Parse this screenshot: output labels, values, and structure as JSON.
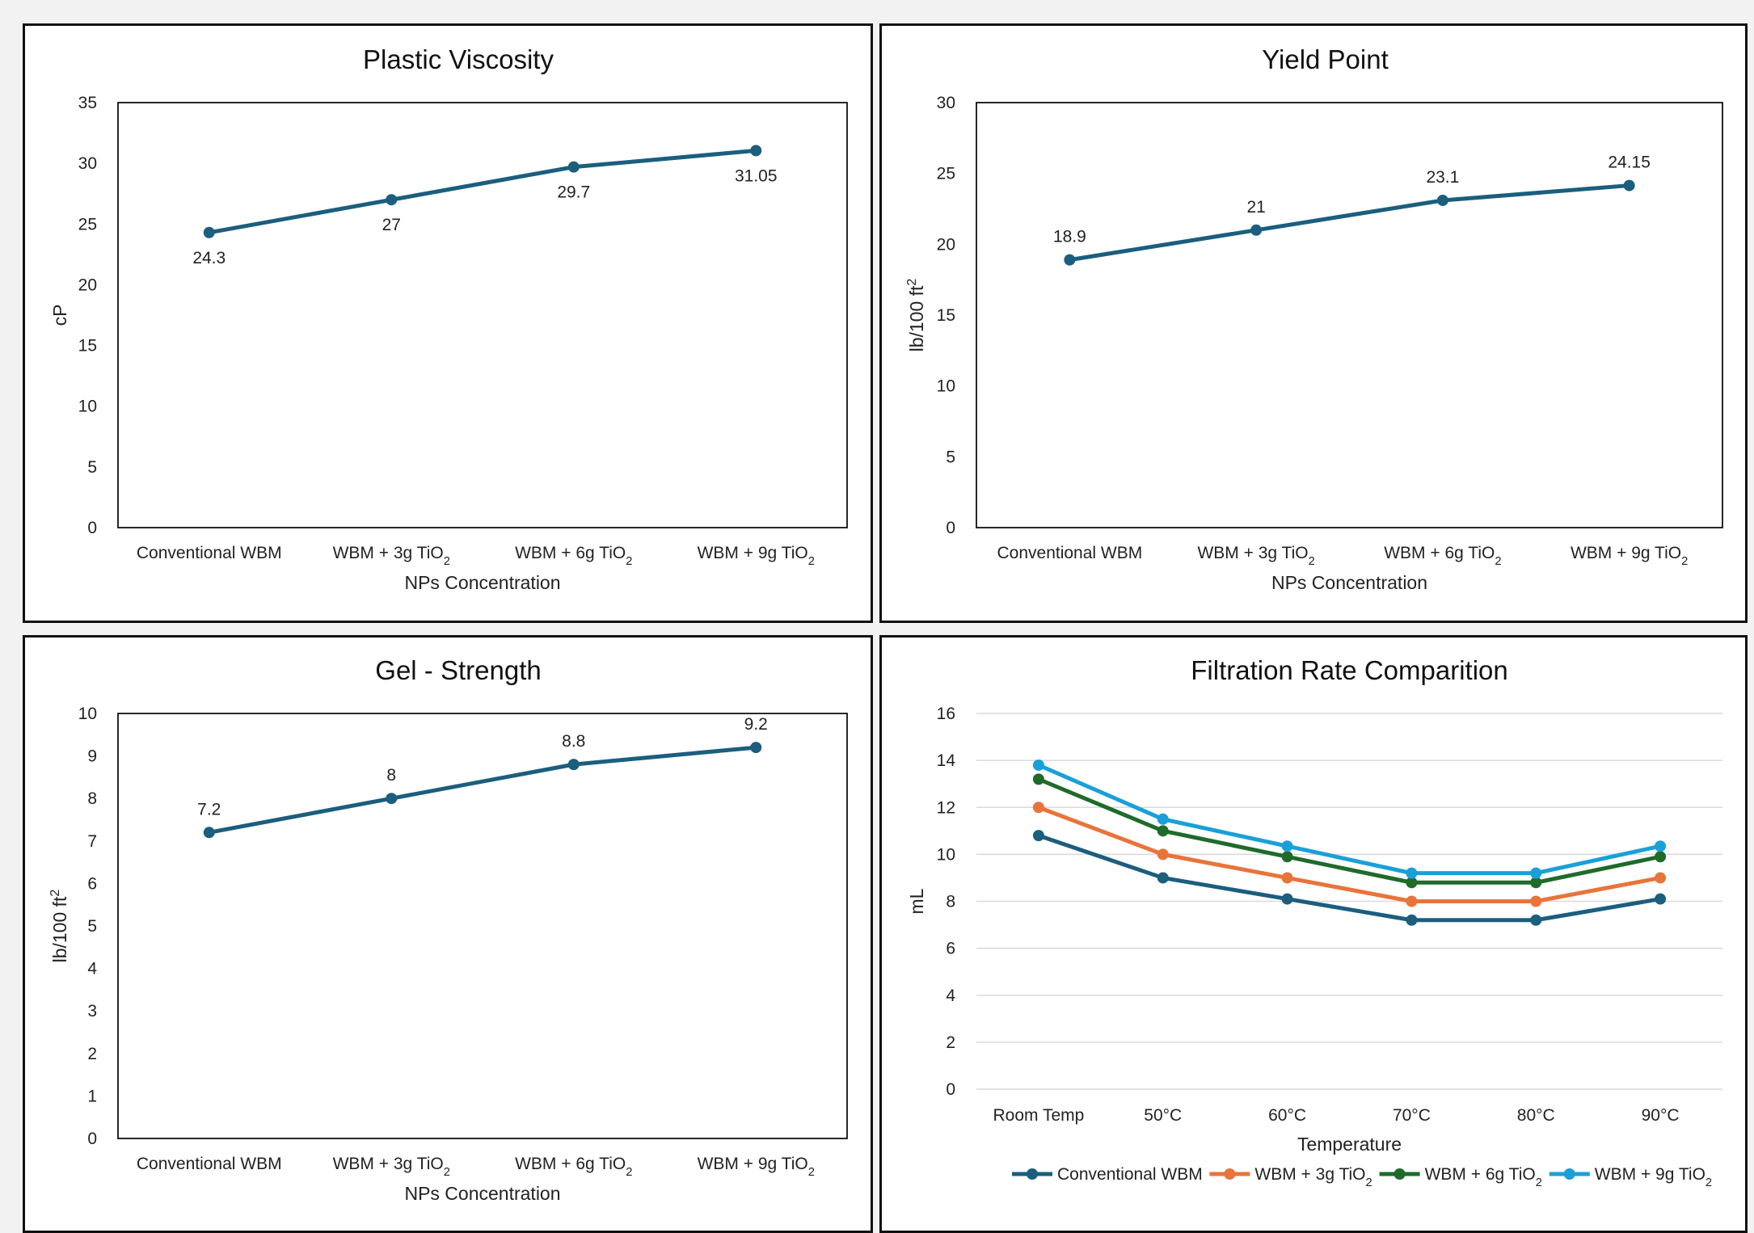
{
  "chart_data": [
    {
      "type": "line",
      "title": "Plastic Viscosity",
      "xlabel": "NPs Concentration",
      "ylabel": "cP",
      "ylim": [
        0,
        35
      ],
      "ytick_step": 5,
      "grid": false,
      "categories": [
        "Conventional WBM",
        "WBM + 3g TiO₂",
        "WBM + 6g TiO₂",
        "WBM + 9g TiO₂"
      ],
      "series": [
        {
          "values": [
            24.3,
            27,
            29.7,
            31.05
          ],
          "labels": [
            "24.3",
            "27",
            "29.7",
            "31.05"
          ],
          "color": "#1b5e7e",
          "label_position": "below"
        }
      ]
    },
    {
      "type": "line",
      "title": "Yield Point",
      "xlabel": "NPs Concentration",
      "ylabel": "lb/100 ft²",
      "ylim": [
        0,
        30
      ],
      "ytick_step": 5,
      "grid": false,
      "categories": [
        "Conventional WBM",
        "WBM + 3g TiO₂",
        "WBM + 6g TiO₂",
        "WBM + 9g TiO₂"
      ],
      "series": [
        {
          "values": [
            18.9,
            21,
            23.1,
            24.15
          ],
          "labels": [
            "18.9",
            "21",
            "23.1",
            "24.15"
          ],
          "color": "#1b5e7e",
          "label_position": "above"
        }
      ]
    },
    {
      "type": "line",
      "title": "Gel - Strength",
      "xlabel": "NPs Concentration",
      "ylabel": "lb/100 ft²",
      "ylim": [
        0,
        10
      ],
      "ytick_step": 1,
      "grid": false,
      "categories": [
        "Conventional WBM",
        "WBM + 3g TiO₂",
        "WBM + 6g TiO₂",
        "WBM + 9g TiO₂"
      ],
      "series": [
        {
          "values": [
            7.2,
            8,
            8.8,
            9.2
          ],
          "labels": [
            "7.2",
            "8",
            "8.8",
            "9.2"
          ],
          "color": "#1b5e7e",
          "label_position": "above"
        }
      ]
    },
    {
      "type": "line",
      "title": "Filtration Rate Comparition",
      "xlabel": "Temperature",
      "ylabel": "mL",
      "ylim": [
        0,
        16
      ],
      "ytick_step": 2,
      "grid": true,
      "legend": "bottom",
      "categories": [
        "Room Temp",
        "50°C",
        "60°C",
        "70°C",
        "80°C",
        "90°C"
      ],
      "series": [
        {
          "name": "Conventional WBM",
          "values": [
            10.8,
            9,
            8.1,
            7.2,
            7.2,
            8.1
          ],
          "color": "#1b5e7e"
        },
        {
          "name": "WBM + 3g TiO₂",
          "values": [
            12,
            10,
            9,
            8,
            8,
            9
          ],
          "color": "#e8743b"
        },
        {
          "name": "WBM + 6g TiO₂",
          "values": [
            13.2,
            11,
            9.9,
            8.8,
            8.8,
            9.9
          ],
          "color": "#1e6b2a"
        },
        {
          "name": "WBM + 9g TiO₂",
          "values": [
            13.8,
            11.5,
            10.35,
            9.2,
            9.2,
            10.35
          ],
          "color": "#1aa0d8"
        }
      ]
    }
  ]
}
